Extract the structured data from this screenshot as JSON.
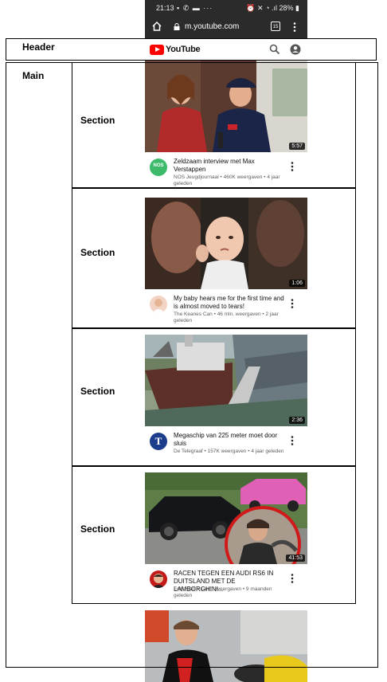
{
  "status_bar": {
    "time": "21:13",
    "battery": "28%"
  },
  "browser": {
    "url": "m.youtube.com",
    "tab_count": "15"
  },
  "youtube": {
    "logo_text": "YouTube"
  },
  "annotations": {
    "header": "Header",
    "main": "Main",
    "section": "Section"
  },
  "videos": [
    {
      "title": "Zeldzaam interview met Max Verstappen",
      "channel": "NOS Jeugdjournaal",
      "views": "460K weergaven",
      "age": "4 jaar geleden",
      "duration": "5:57",
      "avatar_text": "NOS"
    },
    {
      "title": "My baby hears me for the first time and is almost moved to tears!",
      "channel": "The Keanes Can",
      "views": "46 mln. weergaven",
      "age": "2 jaar geleden",
      "duration": "1:06",
      "avatar_text": ""
    },
    {
      "title": "Megaschip van 225 meter moet door sluis",
      "channel": "De Telegraaf",
      "views": "157K weergaven",
      "age": "4 jaar geleden",
      "duration": "2:36",
      "avatar_text": "T"
    },
    {
      "title": "RACEN TEGEN EEN AUDI RS6 IN DUITSLAND MET DE LAMBORGHINI...",
      "channel": "EnzoKnol",
      "views": "1 mln. weergaven",
      "age": "9 maanden geleden",
      "duration": "41:53",
      "avatar_text": ""
    }
  ],
  "colors": {
    "accent": "#ff0000",
    "statusbar": "#2b2b2b"
  }
}
